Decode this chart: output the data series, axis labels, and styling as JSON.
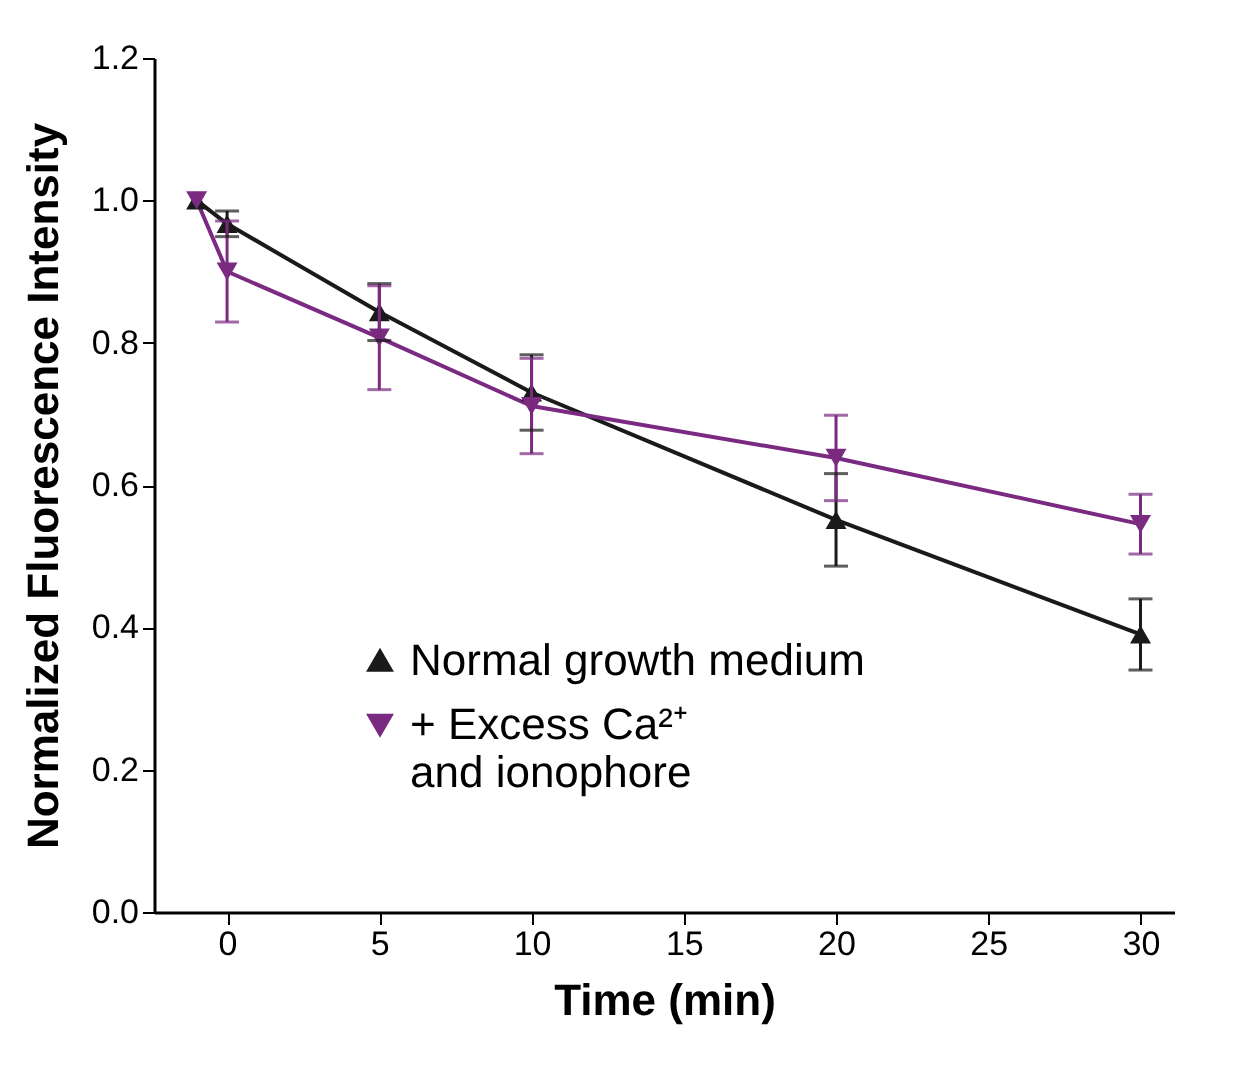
{
  "chart_data": {
    "type": "line",
    "xlabel": "Time (min)",
    "ylabel": "Normalized Fluorescence Intensity",
    "x": [
      -1,
      0,
      5,
      10,
      20,
      30
    ],
    "series": [
      {
        "name": "Normal growth medium",
        "color": "#1a1a1a",
        "marker": "triangle",
        "values": [
          1.0,
          0.967,
          0.843,
          0.73,
          0.551,
          0.39
        ],
        "errors": [
          null,
          0.018,
          0.04,
          0.053,
          0.065,
          0.05
        ]
      },
      {
        "name": "+ Excess Ca²⁺\nand ionophore",
        "color": "#7b2a82",
        "marker": "triangle-down",
        "values": [
          1.0,
          0.9,
          0.807,
          0.711,
          0.638,
          0.545
        ],
        "errors": [
          null,
          0.071,
          0.073,
          0.067,
          0.06,
          0.042
        ]
      }
    ],
    "xlim": [
      -2.4,
      31.1
    ],
    "xticks": [
      0,
      5,
      10,
      15,
      20,
      25,
      30
    ],
    "ylim": [
      0,
      1.2
    ],
    "yticks": [
      {
        "value": 0,
        "label": "0.0"
      },
      {
        "value": 0.2,
        "label": "0.2"
      },
      {
        "value": 0.4,
        "label": "0.4"
      },
      {
        "value": 0.6,
        "label": "0.6"
      },
      {
        "value": 0.8,
        "label": "0.8"
      },
      {
        "value": 1.0,
        "label": "1.0"
      },
      {
        "value": 1.2,
        "label": "1.2"
      }
    ],
    "legend": "bottom",
    "grid": false,
    "line_style": "solid"
  }
}
